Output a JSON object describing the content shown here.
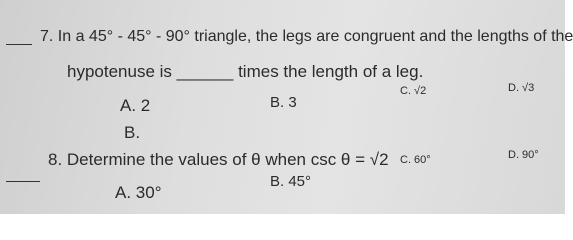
{
  "questions": [
    {
      "stem": [
        "7. In a 45° - 45° - 90° triangle, the legs are congruent and the lengths of the",
        "hypotenuse is ______ times the length of a leg."
      ],
      "options": [
        "A.  2",
        "B. 3",
        "C.  √2",
        "D.  √3"
      ],
      "extra": "B."
    },
    {
      "stem": [
        "8. Determine the values of θ when csc θ = √2"
      ],
      "options": [
        "A. 30°",
        "B. 45°",
        "C. 60°",
        "D. 90°"
      ]
    }
  ]
}
